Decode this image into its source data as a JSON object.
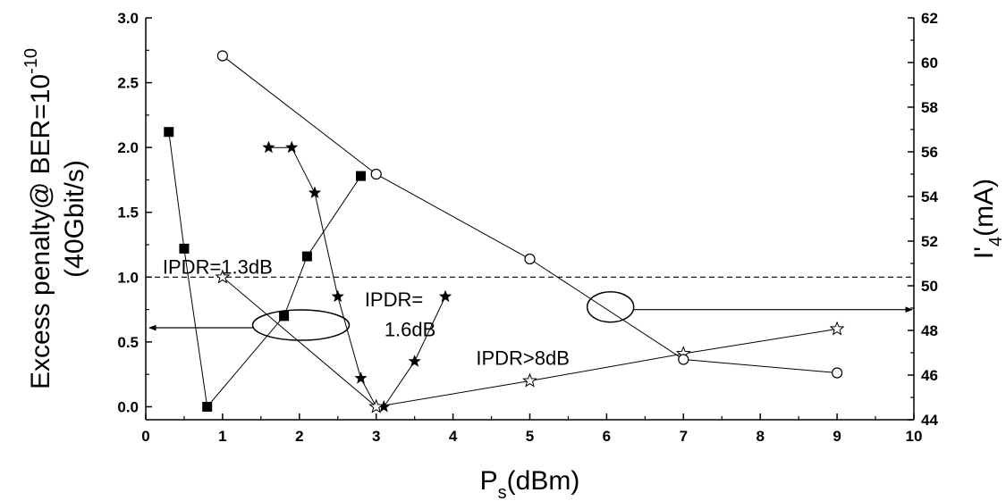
{
  "chart_data": {
    "type": "scatter",
    "x_axis": {
      "label": "P",
      "label_sub": "s",
      "label_rest": "(dBm)",
      "lim": [
        0,
        10
      ],
      "ticks": [
        0,
        1,
        2,
        3,
        4,
        5,
        6,
        7,
        8,
        9,
        10
      ]
    },
    "y_left_axis": {
      "label_line1_pre": "Excess penalty@ BER=10",
      "label_line1_sup": "-10",
      "label_line2": "(40Gbit/s)",
      "lim": [
        -0.1,
        3.0
      ],
      "ticks": [
        0.0,
        0.5,
        1.0,
        1.5,
        2.0,
        2.5,
        3.0
      ],
      "tick_labels": [
        "0.0",
        "0.5",
        "1.0",
        "1.5",
        "2.0",
        "2.5",
        "3.0"
      ]
    },
    "y_right_axis": {
      "label_pre": "I'",
      "label_sub": "4",
      "label_post": "(mA)",
      "lim": [
        44,
        62
      ],
      "ticks": [
        44,
        46,
        48,
        50,
        52,
        54,
        56,
        58,
        60,
        62
      ]
    },
    "series": [
      {
        "marker": "square-filled",
        "axis": "left",
        "x": [
          0.3,
          0.5,
          0.8,
          1.8,
          2.1,
          2.8
        ],
        "y": [
          2.12,
          1.22,
          0.0,
          0.7,
          1.16,
          1.78
        ]
      },
      {
        "marker": "star-filled",
        "axis": "left",
        "x": [
          1.6,
          1.9,
          2.2,
          2.5,
          2.8,
          3.0,
          3.1,
          3.5,
          3.9
        ],
        "y": [
          2.0,
          2.0,
          1.65,
          0.85,
          0.22,
          0.0,
          0.0,
          0.35,
          0.85
        ]
      },
      {
        "marker": "star-open",
        "axis": "left",
        "x": [
          1.0,
          3.0,
          5.0,
          7.0,
          9.0
        ],
        "y": [
          1.0,
          0.0,
          0.2,
          0.41,
          0.6
        ]
      },
      {
        "marker": "circle-open",
        "axis": "right",
        "x": [
          1,
          3,
          5,
          7,
          9
        ],
        "y": [
          60.3,
          55.0,
          51.2,
          46.7,
          46.1
        ]
      }
    ],
    "reference_line": {
      "axis": "left",
      "y": 1.0,
      "style": "dashed"
    },
    "annotations": {
      "ipdr_13": "IPDR=1.3dB",
      "ipdr_16_line1": "IPDR=",
      "ipdr_16_line2": "1.6dB",
      "ipdr_8": "IPDR>8dB"
    },
    "colors": {
      "ink": "#000000",
      "background": "#ffffff"
    }
  }
}
